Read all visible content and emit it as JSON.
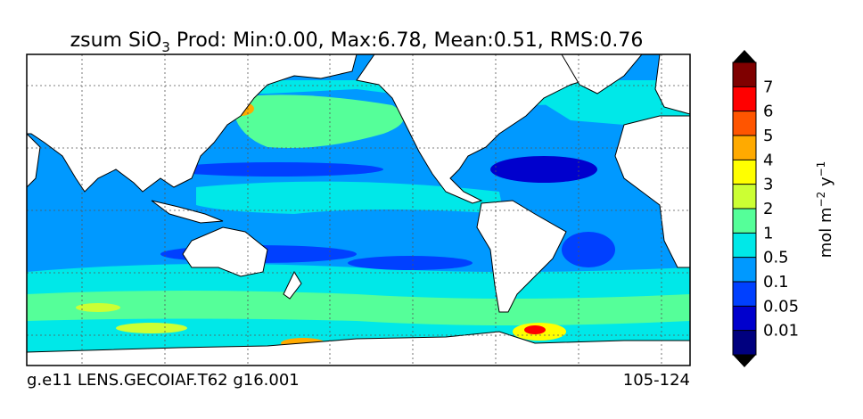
{
  "title": {
    "main": "zsum SiO",
    "sub": "3",
    "rest": " Prod: Min:0.00, Max:6.78, Mean:0.51, RMS:0.76"
  },
  "colorbar": {
    "ticks": [
      0.01,
      0.05,
      0.1,
      0.5,
      1,
      2,
      3,
      4,
      5,
      6,
      7
    ],
    "colors": [
      "#00007f",
      "#0000cd",
      "#0040ff",
      "#0099ff",
      "#00e8e8",
      "#55ff99",
      "#ccff33",
      "#ffff00",
      "#ffaa00",
      "#ff5500",
      "#ff0000",
      "#7f0000"
    ],
    "extend_color": "#000000",
    "label": {
      "unit1": "mol m",
      "exp1": "−2",
      "unit2": " y",
      "exp2": "−1"
    }
  },
  "footer": {
    "left": "g.e11 LENS.GECOIAF.T62 g16.001",
    "right": "105-124"
  }
}
